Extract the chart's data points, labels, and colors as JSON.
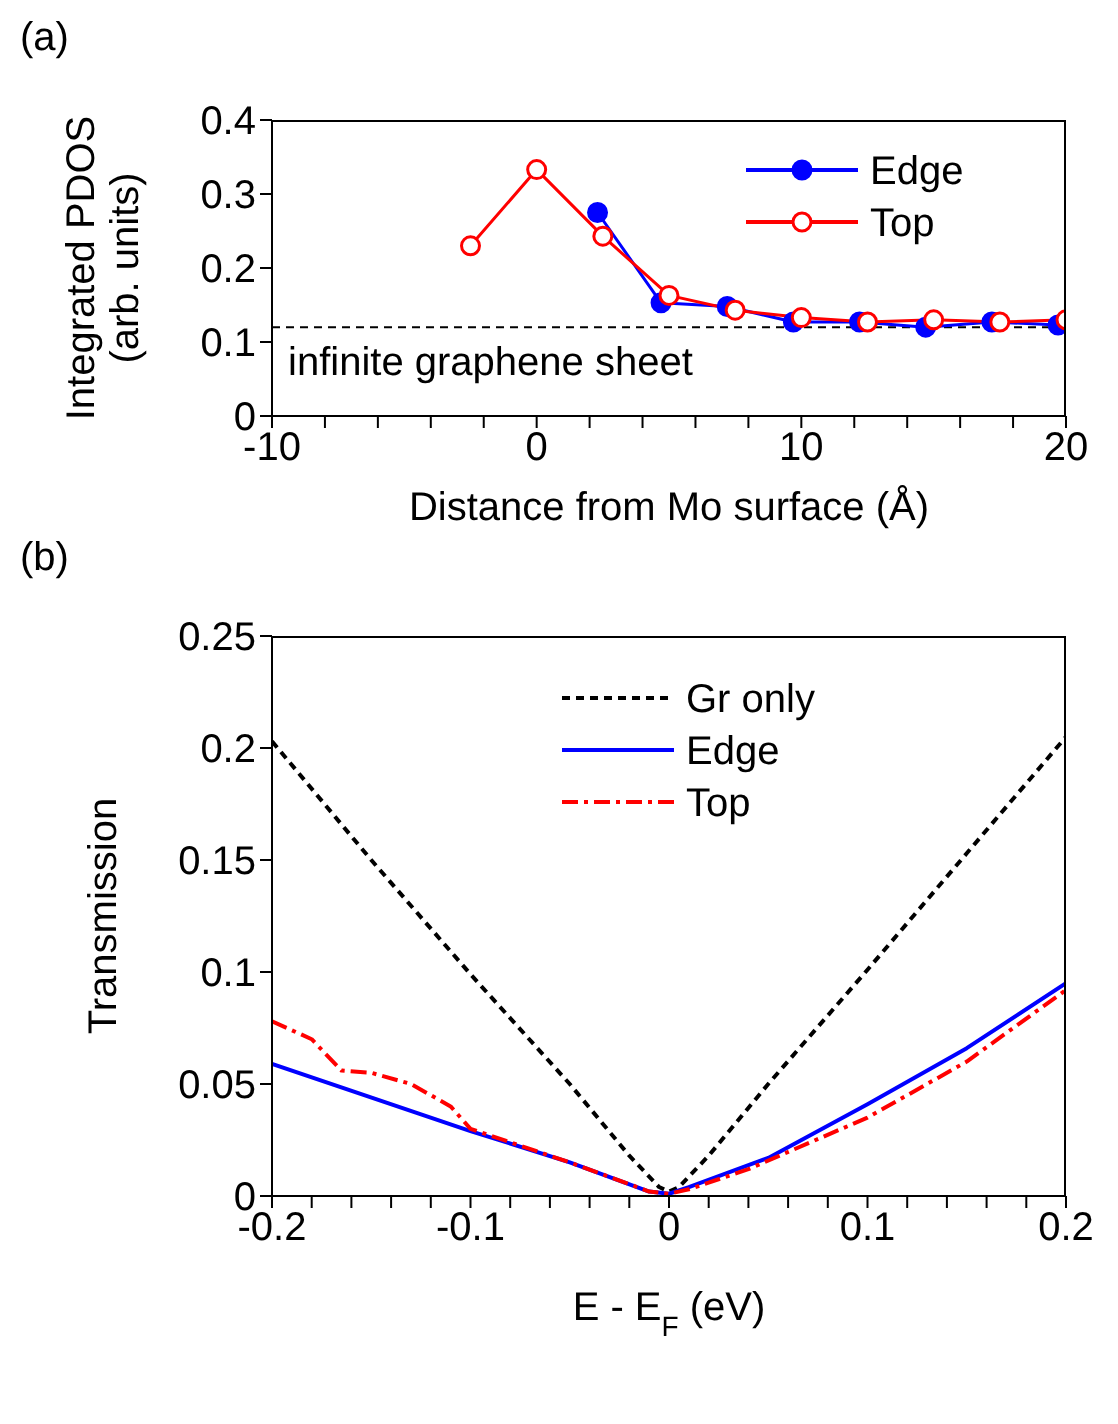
{
  "chart_data": [
    {
      "type": "line",
      "title": "(a)",
      "xlabel": "Distance from Mo surface (Å)",
      "ylabel": "Integrated PDOS\n(arb. units)",
      "xlim": [
        -10,
        20
      ],
      "xticks": [
        -10,
        {
          "value": -8,
          "label": null
        },
        {
          "value": -6,
          "label": null
        },
        {
          "value": -4,
          "label": null
        },
        {
          "value": -2,
          "label": null
        },
        0,
        {
          "value": 2,
          "label": null
        },
        {
          "value": 4,
          "label": null
        },
        {
          "value": 6,
          "label": null
        },
        {
          "value": 8,
          "label": null
        },
        10,
        {
          "value": 12,
          "label": null
        },
        {
          "value": 14,
          "label": null
        },
        {
          "value": 16,
          "label": null
        },
        {
          "value": 18,
          "label": null
        },
        20
      ],
      "ylim": [
        0,
        0.4
      ],
      "yticks": [
        0,
        0.1,
        0.2,
        0.3,
        0.4
      ],
      "grid": false,
      "legend": "top right",
      "series": [
        {
          "name": "Edge",
          "color": "#0000ff",
          "marker": "circle",
          "x": [
            2.3,
            4.7,
            7.2,
            9.7,
            12.2,
            14.7,
            17.2,
            19.7
          ],
          "values": [
            0.275,
            0.153,
            0.148,
            0.127,
            0.127,
            0.12,
            0.127,
            0.123
          ]
        },
        {
          "name": "Top",
          "color": "#ff0000",
          "marker": "circle-open",
          "x": [
            -2.5,
            0,
            2.5,
            5,
            7.5,
            10,
            12.5,
            15,
            17.5,
            20
          ],
          "values": [
            0.23,
            0.333,
            0.243,
            0.163,
            0.143,
            0.133,
            0.127,
            0.13,
            0.127,
            0.13
          ]
        }
      ],
      "ref_lines": [
        {
          "axis": "y",
          "value": 0.12,
          "label": "infinite graphene sheet",
          "color": "#000000",
          "line_style": "dashed"
        }
      ]
    },
    {
      "type": "line",
      "title": "(b)",
      "xlabel": "E - E$_{F}$ (eV)",
      "ylabel": "Transmission",
      "xlim": [
        -0.2,
        0.2
      ],
      "xticks": [
        -0.2,
        {
          "value": -0.18,
          "label": null
        },
        {
          "value": -0.16,
          "label": null
        },
        {
          "value": -0.14,
          "label": null
        },
        {
          "value": -0.12,
          "label": null
        },
        -0.1,
        {
          "value": -0.08,
          "label": null
        },
        {
          "value": -0.06,
          "label": null
        },
        {
          "value": -0.04,
          "label": null
        },
        {
          "value": -0.02,
          "label": null
        },
        0,
        {
          "value": 0.02,
          "label": null
        },
        {
          "value": 0.04,
          "label": null
        },
        {
          "value": 0.06,
          "label": null
        },
        {
          "value": 0.08,
          "label": null
        },
        0.1,
        {
          "value": 0.12,
          "label": null
        },
        {
          "value": 0.14,
          "label": null
        },
        {
          "value": 0.16,
          "label": null
        },
        {
          "value": 0.18,
          "label": null
        },
        0.2
      ],
      "ylim": [
        0,
        0.25
      ],
      "yticks": [
        0,
        0.05,
        0.1,
        0.15,
        0.2,
        0.25
      ],
      "grid": false,
      "legend": "top",
      "marker": "none",
      "series": [
        {
          "name": "Gr only",
          "color": "#000000",
          "line_style": "dashed",
          "x": [
            -0.2,
            -0.15,
            -0.1,
            -0.05,
            -0.02,
            -0.005,
            0,
            0.005,
            0.02,
            0.05,
            0.1,
            0.15,
            0.2
          ],
          "values": [
            0.203,
            0.15,
            0.099,
            0.05,
            0.018,
            0.004,
            0.002,
            0.004,
            0.018,
            0.05,
            0.101,
            0.153,
            0.205
          ]
        },
        {
          "name": "Edge",
          "color": "#0000ff",
          "line_style": "solid",
          "x": [
            -0.2,
            -0.1,
            -0.05,
            -0.01,
            0,
            0.01,
            0.05,
            0.1,
            0.15,
            0.2
          ],
          "values": [
            0.059,
            0.029,
            0.015,
            0.002,
            0.001,
            0.004,
            0.017,
            0.041,
            0.066,
            0.095
          ]
        },
        {
          "name": "Top",
          "color": "#ff0000",
          "line_style": "dashdot",
          "x": [
            -0.2,
            -0.18,
            -0.165,
            -0.15,
            -0.13,
            -0.11,
            -0.1,
            -0.05,
            -0.01,
            0,
            0.01,
            0.04,
            0.1,
            0.15,
            0.2
          ],
          "values": [
            0.078,
            0.07,
            0.056,
            0.055,
            0.05,
            0.04,
            0.03,
            0.015,
            0.002,
            0.001,
            0.003,
            0.012,
            0.035,
            0.06,
            0.092
          ]
        }
      ]
    }
  ]
}
